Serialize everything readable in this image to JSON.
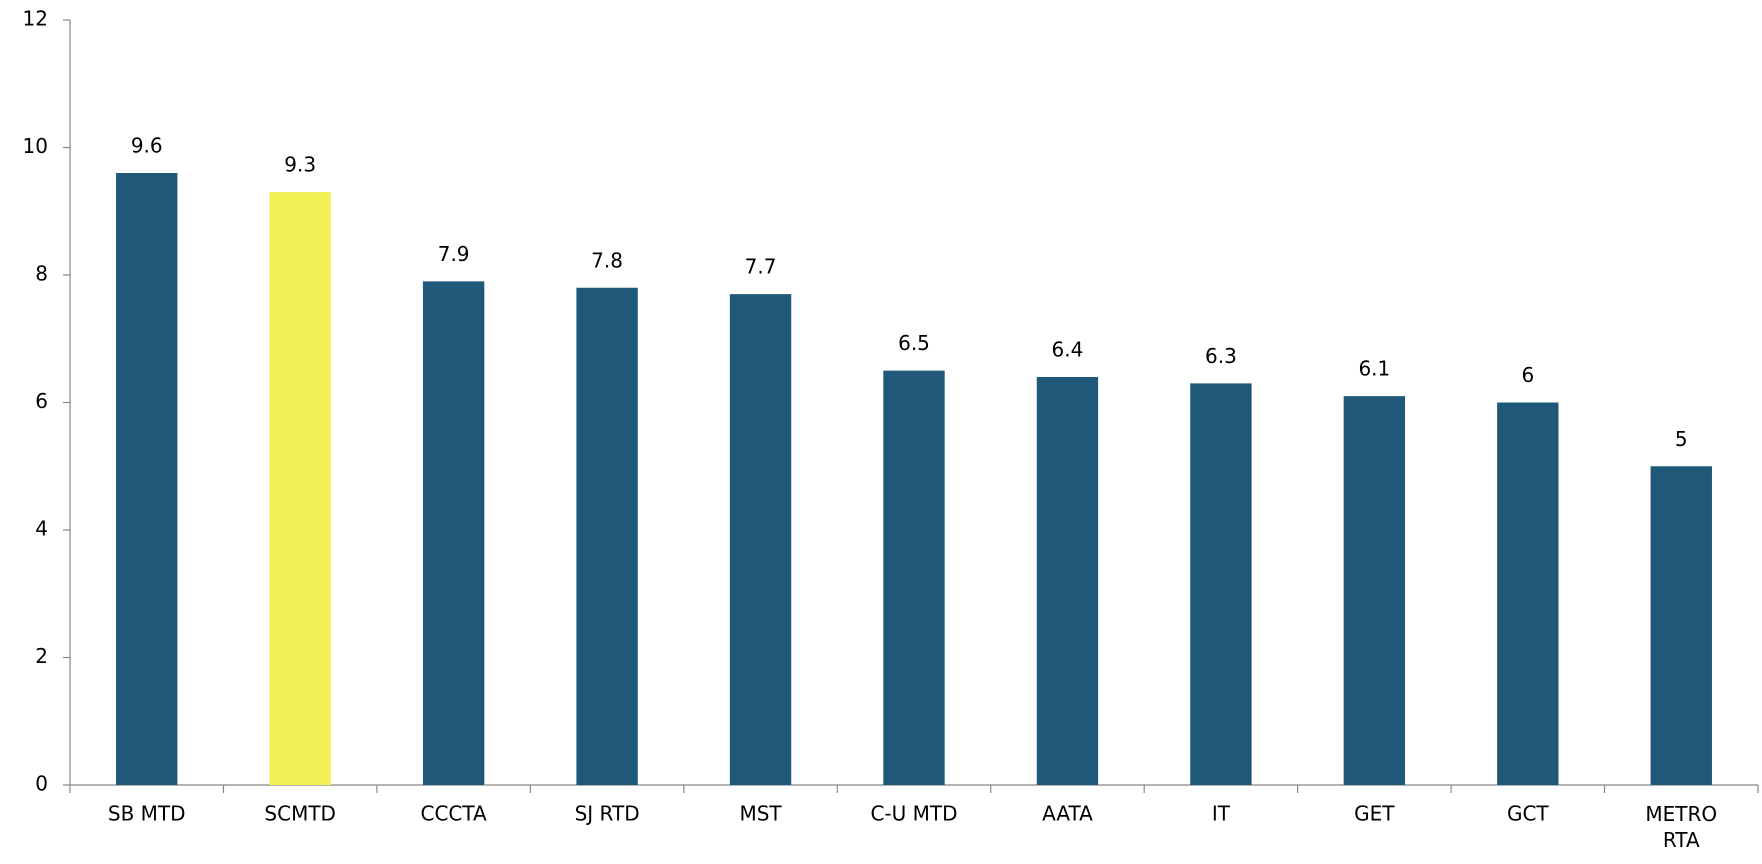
{
  "chart_data": {
    "type": "bar",
    "categories": [
      "SB MTD",
      "SCMTD",
      "CCCTA",
      "SJ RTD",
      "MST",
      "C-U MTD",
      "AATA",
      "IT",
      "GET",
      "GCT",
      "METRO RTA"
    ],
    "values": [
      9.6,
      9.3,
      7.9,
      7.8,
      7.7,
      6.5,
      6.4,
      6.3,
      6.1,
      6,
      5
    ],
    "colors": [
      "#1f5878",
      "#f0f055",
      "#1f5878",
      "#1f5878",
      "#1f5878",
      "#1f5878",
      "#1f5878",
      "#1f5878",
      "#1f5878",
      "#1f5878",
      "#1f5878"
    ],
    "ylim": [
      0,
      12
    ],
    "yticks": [
      0,
      2,
      4,
      6,
      8,
      10,
      12
    ],
    "grid": false
  }
}
